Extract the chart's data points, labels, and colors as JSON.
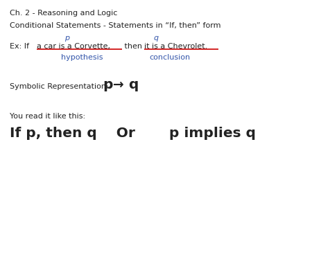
{
  "bg_color": "#ffffff",
  "title_line": "Ch. 2 - Reasoning and Logic",
  "line2": "Conditional Statements - Statements in “If, then” form",
  "p_label": "p",
  "q_label": "q",
  "ex_prefix": "Ex: If ",
  "ex_hyp": "a car is a Corvette,",
  "ex_mid": " then ",
  "ex_conc": "it is a Chevrolet.",
  "hyp_label": "hypothesis",
  "conc_label": "conclusion",
  "symb_prefix": "Symbolic Representation:   ",
  "read_line": "You read it like this:",
  "bottom_line": "If p, then q    Or       p implies q",
  "blue_color": "#3355aa",
  "red_color": "#cc0000",
  "text_color": "#222222",
  "small_fs": 8.0,
  "medium_fs": 8.0,
  "large_fs": 14.5,
  "symb_fs": 14.5
}
